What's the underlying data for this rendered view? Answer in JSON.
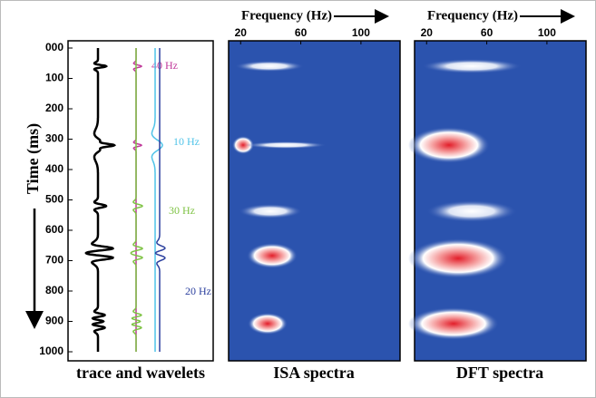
{
  "chart_data": [
    {
      "type": "wavelets",
      "ylabel": "Time (ms)",
      "xlabel": "trace and wavelets",
      "ylim": [
        0,
        1000
      ],
      "yticks": [
        {
          "value": 0,
          "label": "000"
        },
        100,
        200,
        300,
        400,
        500,
        600,
        700,
        800,
        900,
        1000
      ],
      "series": [
        {
          "name": "40 Hz",
          "color": "#c0399a",
          "times": [
            60,
            320
          ]
        },
        {
          "name": "10 Hz",
          "color": "#4fc3e8",
          "times": [
            320
          ]
        },
        {
          "name": "30 Hz",
          "color": "#7dc242",
          "times": [
            520,
            660,
            690,
            880,
            900,
            920
          ]
        },
        {
          "name": "20 Hz",
          "color": "#2b3f9e",
          "times": [
            660,
            690
          ]
        }
      ]
    },
    {
      "type": "spectrogram",
      "title": "Frequency (Hz)",
      "xlabel": "ISA spectra",
      "xlim": [
        12,
        126
      ],
      "xticks": [
        20,
        60,
        100
      ],
      "ylim": [
        0,
        1000
      ]
    },
    {
      "type": "spectrogram",
      "title": "Frequency (Hz)",
      "xlabel": "DFT spectra",
      "xlim": [
        12,
        126
      ],
      "xticks": [
        20,
        60,
        100
      ],
      "ylim": [
        0,
        1000
      ]
    }
  ]
}
